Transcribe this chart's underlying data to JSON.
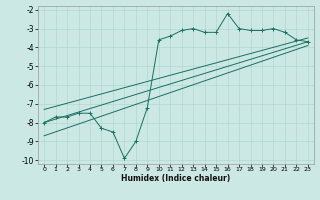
{
  "xlabel": "Humidex (Indice chaleur)",
  "background_color": "#cce8e4",
  "line_color": "#1a6e62",
  "grid_color": "#b0d8d0",
  "xlim": [
    -0.5,
    23.5
  ],
  "ylim": [
    -10.2,
    -1.8
  ],
  "xticks": [
    0,
    1,
    2,
    3,
    4,
    5,
    6,
    7,
    8,
    9,
    10,
    11,
    12,
    13,
    14,
    15,
    16,
    17,
    18,
    19,
    20,
    21,
    22,
    23
  ],
  "yticks": [
    -10,
    -9,
    -8,
    -7,
    -6,
    -5,
    -4,
    -3,
    -2
  ],
  "main_x": [
    0,
    1,
    2,
    3,
    4,
    5,
    6,
    7,
    8,
    9,
    10,
    11,
    12,
    13,
    14,
    15,
    16,
    17,
    18,
    19,
    20,
    21,
    22,
    23
  ],
  "main_y": [
    -8.0,
    -7.7,
    -7.7,
    -7.5,
    -7.5,
    -8.3,
    -8.5,
    -9.9,
    -9.0,
    -7.2,
    -3.6,
    -3.4,
    -3.1,
    -3.0,
    -3.2,
    -3.2,
    -2.2,
    -3.0,
    -3.1,
    -3.1,
    -3.0,
    -3.2,
    -3.6,
    -3.7
  ],
  "line1_x": [
    0,
    23
  ],
  "line1_y": [
    -8.0,
    -3.7
  ],
  "line2_x": [
    0,
    23
  ],
  "line2_y": [
    -7.3,
    -3.5
  ],
  "line3_x": [
    0,
    23
  ],
  "line3_y": [
    -8.7,
    -3.9
  ]
}
